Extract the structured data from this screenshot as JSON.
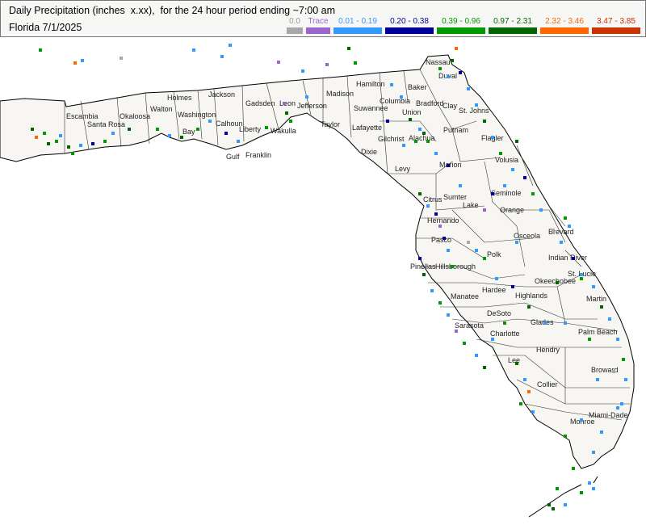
{
  "header": {
    "title_line1": "Daily Precipitation (inches  x.xx),  for the 24 hour period ending ~7:00 am",
    "title_line2": "Florida 7/1/2025"
  },
  "legend": [
    {
      "label": "0.0",
      "color": "#a8a8a8"
    },
    {
      "label": "Trace",
      "color": "#9966cc"
    },
    {
      "label": "0.01 - 0.19",
      "color": "#3399ff"
    },
    {
      "label": "0.20 - 0.38",
      "color": "#000099"
    },
    {
      "label": "0.39 - 0.96",
      "color": "#009900"
    },
    {
      "label": "0.97 - 2.31",
      "color": "#006600"
    },
    {
      "label": "2.32 - 3.46",
      "color": "#ff6600"
    },
    {
      "label": "3.47 - 3.85",
      "color": "#cc3300"
    }
  ],
  "counties": [
    "Escambia",
    "Santa Rosa",
    "Okaloosa",
    "Walton",
    "Holmes",
    "Washington",
    "Jackson",
    "Bay",
    "Calhoun",
    "Gadsden",
    "Leon",
    "Jefferson",
    "Madison",
    "Hamilton",
    "Suwannee",
    "Columbia",
    "Baker",
    "Nassau",
    "Duval",
    "Union",
    "Bradford",
    "Clay",
    "St. Johns",
    "Liberty",
    "Wakulla",
    "Taylor",
    "Lafayette",
    "Gulf",
    "Franklin",
    "Dixie",
    "Gilchrist",
    "Alachua",
    "Putnam",
    "Flagler",
    "Levy",
    "Marion",
    "Volusia",
    "Citrus",
    "Sumter",
    "Lake",
    "Seminole",
    "Orange",
    "Hernando",
    "Brevard",
    "Pasco",
    "Osceola",
    "Pinellas",
    "Hillsborough",
    "Polk",
    "Indian River",
    "Manatee",
    "Hardee",
    "Highlands",
    "Okeechobee",
    "St. Lucie",
    "Martin",
    "Sarasota",
    "DeSoto",
    "Charlotte",
    "Glades",
    "Palm Beach",
    "Lee",
    "Hendry",
    "Broward",
    "Collier",
    "Miami-Dade",
    "Monroe"
  ]
}
